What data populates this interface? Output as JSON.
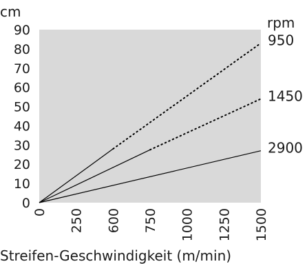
{
  "chart_data": {
    "type": "line",
    "title": "",
    "xlabel": "Streifen-Geschwindigkeit (m/min)",
    "ylabel": "cm",
    "right_axis_label": "rpm",
    "x_ticks": [
      "0",
      "250",
      "600",
      "750",
      "1000",
      "1250",
      "1500"
    ],
    "y_ticks": [
      "0",
      "10",
      "20",
      "30",
      "40",
      "50",
      "60",
      "70",
      "80",
      "90"
    ],
    "xlim": [
      0,
      1500
    ],
    "ylim": [
      0,
      90
    ],
    "grid": false,
    "plot_background": "#d9d9d9",
    "line_color": "#000000",
    "series": [
      {
        "name": "950",
        "solid": [
          [
            0,
            0
          ],
          [
            500,
            28
          ]
        ],
        "dotted": [
          [
            500,
            28
          ],
          [
            1500,
            83
          ]
        ]
      },
      {
        "name": "1450",
        "solid": [
          [
            0,
            0
          ],
          [
            750,
            27.5
          ]
        ],
        "dotted": [
          [
            750,
            27.5
          ],
          [
            1500,
            54
          ]
        ]
      },
      {
        "name": "2900",
        "solid": [
          [
            0,
            0
          ],
          [
            1500,
            27
          ]
        ],
        "dotted": []
      }
    ]
  }
}
